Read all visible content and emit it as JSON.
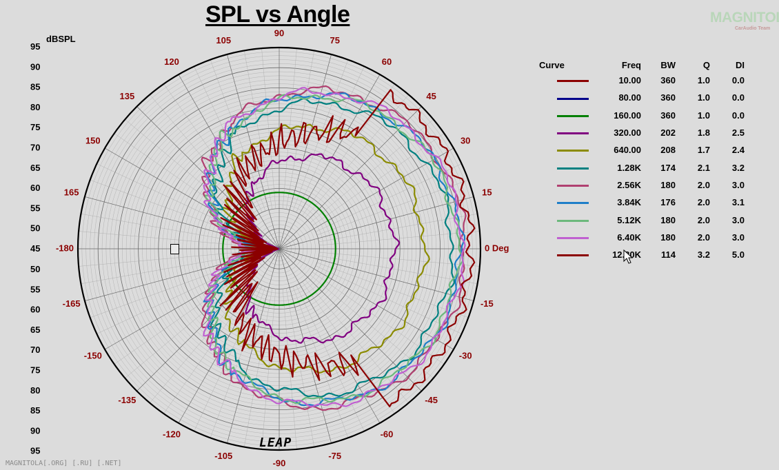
{
  "chart_data": {
    "type": "polar",
    "title": "SPL vs Angle",
    "r_unit_label": "dBSPL",
    "r_scale_labels_top": [
      "95",
      "90",
      "85",
      "80",
      "75",
      "70",
      "65",
      "60",
      "55",
      "50",
      "45"
    ],
    "r_scale_labels_bottom": [
      "50",
      "55",
      "60",
      "65",
      "70",
      "75",
      "80",
      "85",
      "90",
      "95"
    ],
    "r_range": [
      45,
      95
    ],
    "angle_labels": [
      {
        "deg": 0,
        "text": "0 Deg"
      },
      {
        "deg": 15,
        "text": "15"
      },
      {
        "deg": 30,
        "text": "30"
      },
      {
        "deg": 45,
        "text": "45"
      },
      {
        "deg": 60,
        "text": "60"
      },
      {
        "deg": 75,
        "text": "75"
      },
      {
        "deg": 90,
        "text": "90"
      },
      {
        "deg": 105,
        "text": "105"
      },
      {
        "deg": 120,
        "text": "120"
      },
      {
        "deg": 135,
        "text": "135"
      },
      {
        "deg": 150,
        "text": "150"
      },
      {
        "deg": 165,
        "text": "165"
      },
      {
        "deg": 180,
        "text": "-180"
      },
      {
        "deg": -165,
        "text": "-165"
      },
      {
        "deg": -150,
        "text": "-150"
      },
      {
        "deg": -135,
        "text": "-135"
      },
      {
        "deg": -120,
        "text": "-120"
      },
      {
        "deg": -105,
        "text": "-105"
      },
      {
        "deg": -90,
        "text": "-90"
      },
      {
        "deg": -75,
        "text": "-75"
      },
      {
        "deg": -60,
        "text": "-60"
      },
      {
        "deg": -45,
        "text": "-45"
      },
      {
        "deg": -30,
        "text": "-30"
      },
      {
        "deg": -15,
        "text": "-15"
      }
    ],
    "legend_headers": {
      "curve": "Curve",
      "freq": "Freq",
      "bw": "BW",
      "q": "Q",
      "di": "DI"
    },
    "series": [
      {
        "name": "10.00",
        "freq": "10.00",
        "bw": "360",
        "q": "1.0",
        "di": "0.0",
        "color": "#8b0000",
        "beam": 360,
        "r0": 45,
        "spikes": false
      },
      {
        "name": "80.00",
        "freq": "80.00",
        "bw": "360",
        "q": "1.0",
        "di": "0.0",
        "color": "#00008b",
        "beam": 360,
        "r0": 45,
        "spikes": false
      },
      {
        "name": "160.00",
        "freq": "160.00",
        "bw": "360",
        "q": "1.0",
        "di": "0.0",
        "color": "#008000",
        "beam": 360,
        "r0": 59,
        "spikes": false
      },
      {
        "name": "320.00",
        "freq": "320.00",
        "bw": "202",
        "q": "1.8",
        "di": "2.5",
        "color": "#800080",
        "beam": 202,
        "r0": 73.5,
        "spikes": false
      },
      {
        "name": "640.00",
        "freq": "640.00",
        "bw": "208",
        "q": "1.7",
        "di": "2.4",
        "color": "#8b8b00",
        "beam": 208,
        "r0": 81,
        "spikes": false
      },
      {
        "name": "1.28K",
        "freq": "1.28K",
        "bw": "174",
        "q": "2.1",
        "di": "3.2",
        "color": "#008080",
        "beam": 174,
        "r0": 88,
        "spikes": false
      },
      {
        "name": "2.56K",
        "freq": "2.56K",
        "bw": "180",
        "q": "2.0",
        "di": "3.0",
        "color": "#b04070",
        "beam": 180,
        "r0": 91,
        "spikes": false
      },
      {
        "name": "3.84K",
        "freq": "3.84K",
        "bw": "176",
        "q": "2.0",
        "di": "3.1",
        "color": "#1e7ec8",
        "beam": 176,
        "r0": 90,
        "spikes": false
      },
      {
        "name": "5.12K",
        "freq": "5.12K",
        "bw": "180",
        "q": "2.0",
        "di": "3.0",
        "color": "#6cb87c",
        "beam": 180,
        "r0": 89.5,
        "spikes": false
      },
      {
        "name": "6.40K",
        "freq": "6.40K",
        "bw": "180",
        "q": "2.0",
        "di": "3.0",
        "color": "#c060d0",
        "beam": 180,
        "r0": 90.5,
        "spikes": false
      },
      {
        "name": "12.80K",
        "freq": "12.80K",
        "bw": "114",
        "q": "3.2",
        "di": "5.0",
        "color": "#8b0000",
        "beam": 114,
        "r0": 92.5,
        "spikes": true
      }
    ]
  },
  "watermark": {
    "brand": "MAGNITOLA",
    "sub": "CarAudio Team"
  },
  "footer": "MAGNITOLA[.ORG] [.RU] [.NET]",
  "logo": "LEAP",
  "colors": {
    "angle_label": "#8b0000",
    "grid": "#7a7a7a",
    "background": "#dcdcdc"
  }
}
